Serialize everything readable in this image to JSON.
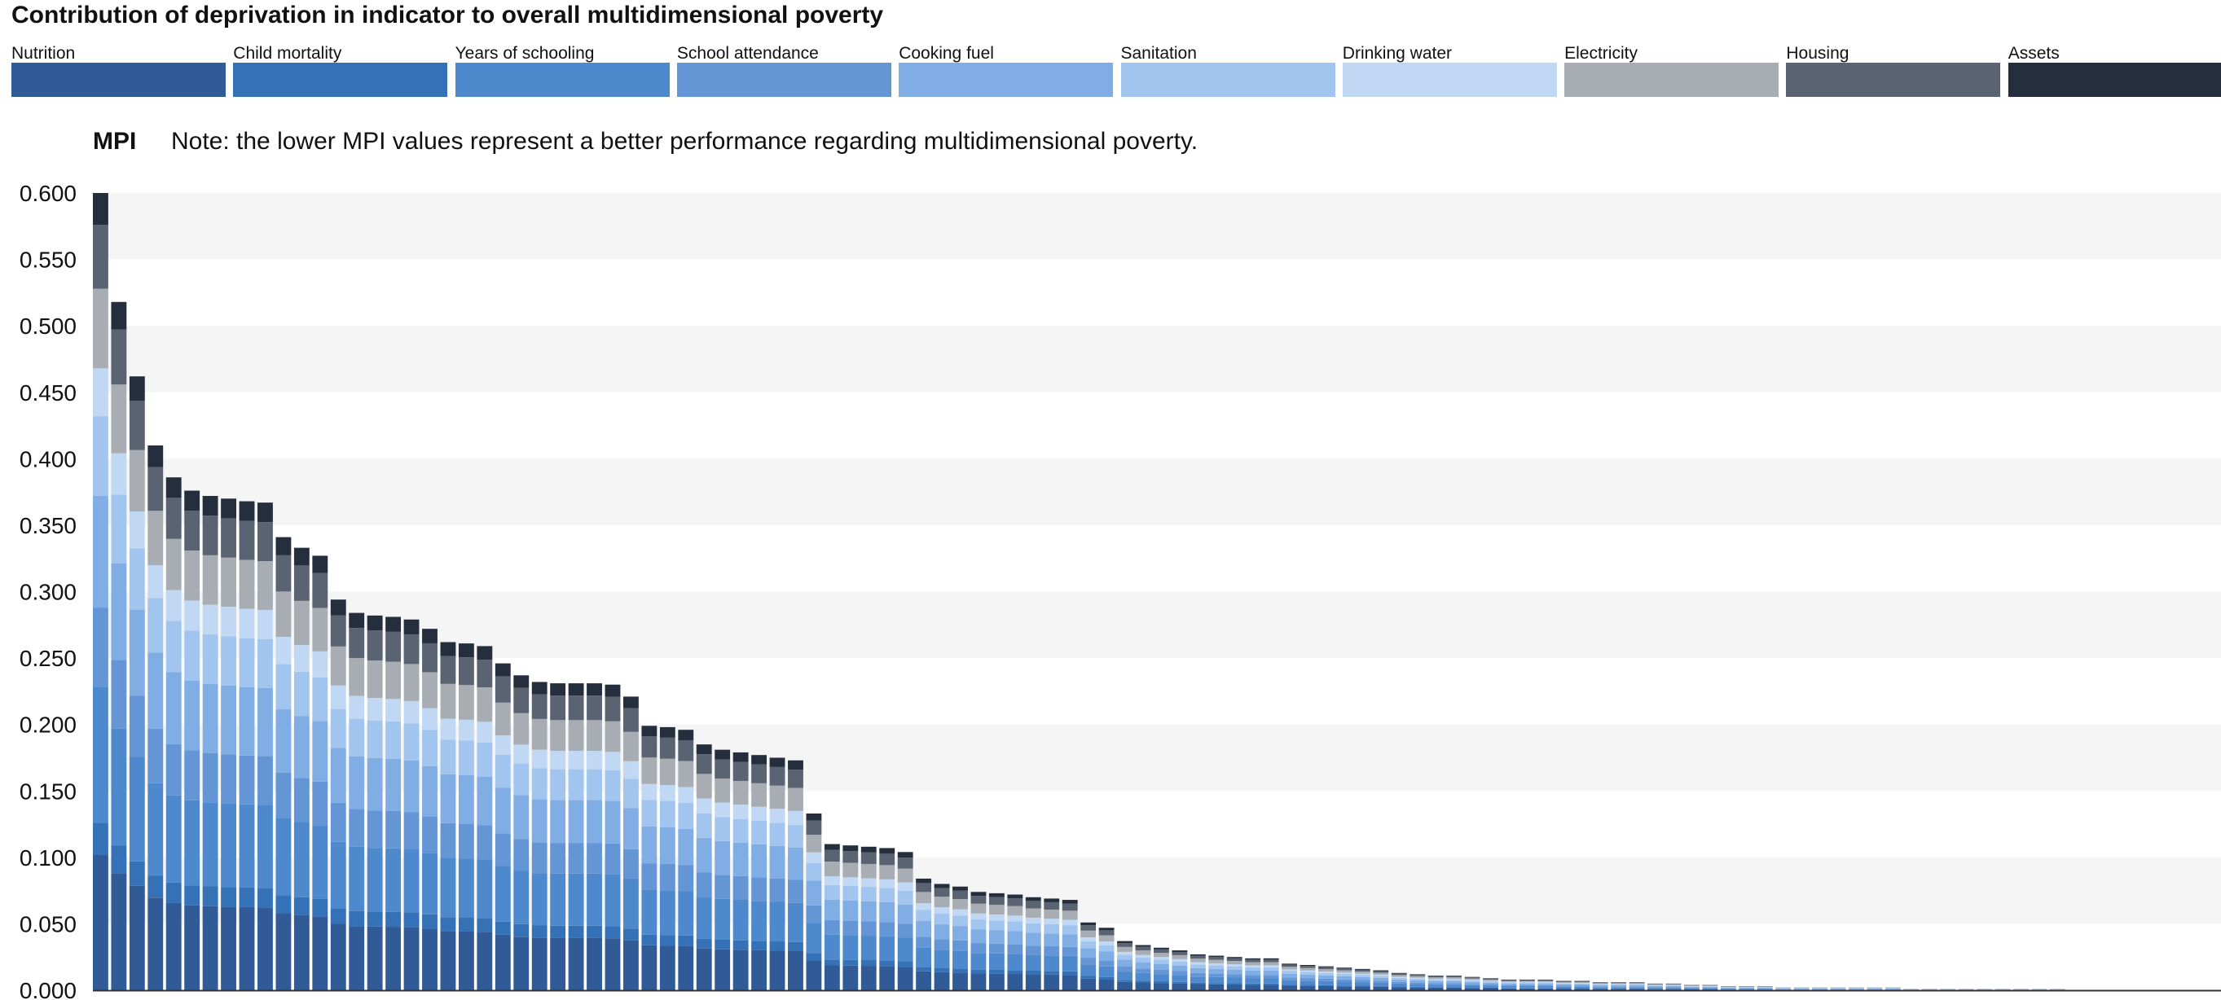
{
  "chart_data": {
    "type": "bar",
    "stacked": true,
    "title": "Contribution of deprivation in indicator to overall multidimensional poverty",
    "ylabel": "MPI",
    "note": "Note: the lower MPI values represent a better performance regarding multidimensional poverty.",
    "ylim": [
      0,
      0.6
    ],
    "yticks": [
      "0.000",
      "0.050",
      "0.100",
      "0.150",
      "0.200",
      "0.250",
      "0.300",
      "0.350",
      "0.400",
      "0.450",
      "0.500",
      "0.550",
      "0.600"
    ],
    "grid": "alternating bands",
    "legend_position": "top",
    "series": [
      {
        "name": "Nutrition",
        "color": "#315b96"
      },
      {
        "name": "Child mortality",
        "color": "#3471b6"
      },
      {
        "name": "Years of schooling",
        "color": "#4d89cc"
      },
      {
        "name": "School attendance",
        "color": "#6496d6"
      },
      {
        "name": "Cooking fuel",
        "color": "#80ade4"
      },
      {
        "name": "Sanitation",
        "color": "#a1c5ee"
      },
      {
        "name": "Drinking water",
        "color": "#c0d8f3"
      },
      {
        "name": "Electricity",
        "color": "#a8adb3"
      },
      {
        "name": "Housing",
        "color": "#5a6372"
      },
      {
        "name": "Assets",
        "color": "#252e3d"
      }
    ],
    "mpi": [
      0.6,
      0.518,
      0.462,
      0.41,
      0.386,
      0.376,
      0.372,
      0.37,
      0.368,
      0.367,
      0.341,
      0.333,
      0.327,
      0.294,
      0.284,
      0.282,
      0.281,
      0.279,
      0.272,
      0.262,
      0.261,
      0.259,
      0.246,
      0.237,
      0.232,
      0.231,
      0.231,
      0.231,
      0.23,
      0.221,
      0.199,
      0.198,
      0.196,
      0.185,
      0.181,
      0.179,
      0.177,
      0.175,
      0.173,
      0.133,
      0.11,
      0.109,
      0.108,
      0.107,
      0.104,
      0.084,
      0.08,
      0.078,
      0.074,
      0.073,
      0.072,
      0.07,
      0.069,
      0.068,
      0.051,
      0.047,
      0.037,
      0.034,
      0.032,
      0.03,
      0.027,
      0.026,
      0.025,
      0.024,
      0.024,
      0.02,
      0.019,
      0.018,
      0.017,
      0.016,
      0.015,
      0.013,
      0.012,
      0.011,
      0.011,
      0.01,
      0.009,
      0.008,
      0.008,
      0.008,
      0.007,
      0.007,
      0.006,
      0.006,
      0.006,
      0.005,
      0.005,
      0.004,
      0.004,
      0.003,
      0.003,
      0.003,
      0.002,
      0.002,
      0.002,
      0.002,
      0.002,
      0.002,
      0.002,
      0.001,
      0.001,
      0.001,
      0.001,
      0.001,
      0.001,
      0.001,
      0.001,
      0.001,
      0.0,
      0.0,
      0.0,
      0.0,
      0.0,
      0.0,
      0.0,
      0.0
    ]
  }
}
